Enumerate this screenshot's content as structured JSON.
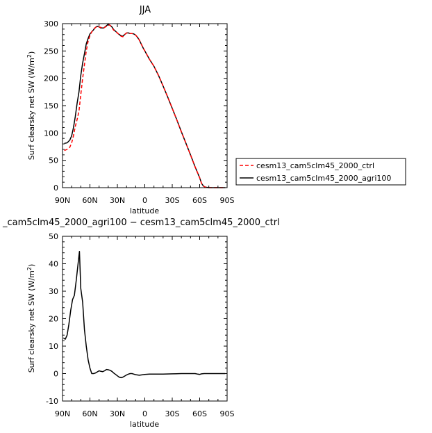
{
  "chart_data": [
    {
      "type": "line",
      "title": "JJA",
      "xlabel": "latitude",
      "ylabel_parts": [
        "Surf clearsky net SW (W/m",
        "2",
        ")"
      ],
      "x_ticks": [
        {
          "value": 90,
          "label": "90N"
        },
        {
          "value": 60,
          "label": "60N"
        },
        {
          "value": 30,
          "label": "30N"
        },
        {
          "value": 0,
          "label": "0"
        },
        {
          "value": -30,
          "label": "30S"
        },
        {
          "value": -60,
          "label": "60S"
        },
        {
          "value": -90,
          "label": "90S"
        }
      ],
      "y_ticks": [
        0,
        50,
        100,
        150,
        200,
        250,
        300
      ],
      "xlim": [
        90,
        -90
      ],
      "ylim": [
        0,
        300
      ],
      "legend_position": "right",
      "series": [
        {
          "name": "cesm13_cam5clm45_2000_ctrl",
          "color": "#ff0000",
          "dash": "dashed",
          "x": [
            88,
            85,
            82,
            80,
            78,
            76,
            74,
            72,
            70,
            68,
            66,
            64,
            62,
            60,
            58,
            56,
            54,
            52,
            50,
            48,
            45,
            42,
            40,
            38,
            36,
            34,
            32,
            30,
            28,
            26,
            24,
            22,
            20,
            18,
            16,
            14,
            12,
            10,
            8,
            6,
            4,
            2,
            0,
            -5,
            -10,
            -15,
            -20,
            -25,
            -30,
            -35,
            -40,
            -45,
            -50,
            -55,
            -60,
            -62,
            -64,
            -66,
            -68,
            -70,
            -75,
            -80,
            -85,
            -88
          ],
          "y": [
            68,
            70,
            74,
            82,
            95,
            112,
            125,
            140,
            170,
            200,
            225,
            250,
            268,
            278,
            285,
            290,
            293,
            295,
            294,
            293,
            292,
            295,
            298,
            297,
            293,
            288,
            286,
            283,
            280,
            277,
            276,
            280,
            283,
            283,
            282,
            282,
            281,
            279,
            275,
            270,
            263,
            256,
            250,
            235,
            222,
            205,
            186,
            166,
            145,
            124,
            102,
            81,
            60,
            38,
            18,
            8,
            3,
            1,
            0.5,
            0,
            0,
            0,
            0,
            0
          ]
        },
        {
          "name": "cesm13_cam5clm45_2000_agri100",
          "color": "#000000",
          "dash": "solid",
          "x": [
            88,
            85,
            82,
            80,
            78,
            76,
            74,
            72,
            70,
            68,
            66,
            64,
            62,
            60,
            58,
            56,
            54,
            52,
            50,
            48,
            45,
            42,
            40,
            38,
            36,
            34,
            32,
            30,
            28,
            26,
            24,
            22,
            20,
            18,
            16,
            14,
            12,
            10,
            8,
            6,
            4,
            2,
            0,
            -5,
            -10,
            -15,
            -20,
            -25,
            -30,
            -35,
            -40,
            -45,
            -50,
            -55,
            -60,
            -62,
            -64,
            -66,
            -68,
            -70,
            -75,
            -80,
            -85,
            -88
          ],
          "y": [
            81,
            82,
            87,
            95,
            110,
            130,
            155,
            175,
            205,
            228,
            245,
            263,
            273,
            281,
            285,
            289,
            293,
            295,
            294,
            292,
            292,
            296,
            299,
            297,
            294,
            289,
            286,
            283,
            280,
            278,
            277,
            280,
            283,
            283,
            282,
            282,
            281,
            279,
            275,
            270,
            263,
            256,
            250,
            235,
            222,
            205,
            186,
            166,
            145,
            124,
            102,
            81,
            60,
            38,
            18,
            8,
            3,
            1,
            0.5,
            0,
            0,
            0,
            0,
            0
          ]
        }
      ]
    },
    {
      "type": "line",
      "title": "_cam5clm45_2000_agri100 − cesm13_cam5clm45_2000_ctrl",
      "xlabel": "latitude",
      "ylabel_parts": [
        "Surf clearsky net SW (W/m",
        "2",
        ")"
      ],
      "x_ticks": [
        {
          "value": 90,
          "label": "90N"
        },
        {
          "value": 60,
          "label": "60N"
        },
        {
          "value": 30,
          "label": "30N"
        },
        {
          "value": 0,
          "label": "0"
        },
        {
          "value": -30,
          "label": "30S"
        },
        {
          "value": -60,
          "label": "60S"
        },
        {
          "value": -90,
          "label": "90S"
        }
      ],
      "y_ticks": [
        -10,
        0,
        10,
        20,
        30,
        40,
        50
      ],
      "xlim": [
        90,
        -90
      ],
      "ylim": [
        -10,
        50
      ],
      "series": [
        {
          "color": "#000000",
          "dash": "solid",
          "x": [
            89,
            87,
            85,
            83,
            81,
            79,
            77,
            75,
            73,
            71.5,
            70,
            68,
            66,
            64,
            62,
            60,
            58,
            56,
            54,
            52,
            50,
            48,
            46,
            44,
            42,
            40,
            38,
            36,
            34,
            32,
            30,
            28,
            26,
            24,
            22,
            20,
            18,
            16,
            14,
            12,
            10,
            8,
            6,
            4,
            2,
            0,
            -5,
            -10,
            -20,
            -30,
            -40,
            -50,
            -55,
            -58,
            -60,
            -62,
            -65,
            -70,
            -80,
            -88
          ],
          "y": [
            13,
            12.5,
            14,
            18,
            23,
            27,
            28.5,
            34,
            40,
            44.5,
            31,
            26,
            16,
            10,
            5,
            2,
            0,
            0,
            0.2,
            0.6,
            1.0,
            0.8,
            0.7,
            1.0,
            1.5,
            1.4,
            1.2,
            0.8,
            0.2,
            -0.3,
            -0.8,
            -1.3,
            -1.5,
            -1.3,
            -0.9,
            -0.5,
            -0.2,
            0,
            0,
            -0.2,
            -0.4,
            -0.5,
            -0.6,
            -0.5,
            -0.4,
            -0.3,
            -0.2,
            -0.2,
            -0.2,
            -0.1,
            0,
            0,
            0,
            -0.2,
            -0.3,
            -0.1,
            0,
            0,
            0,
            0
          ]
        }
      ]
    }
  ]
}
